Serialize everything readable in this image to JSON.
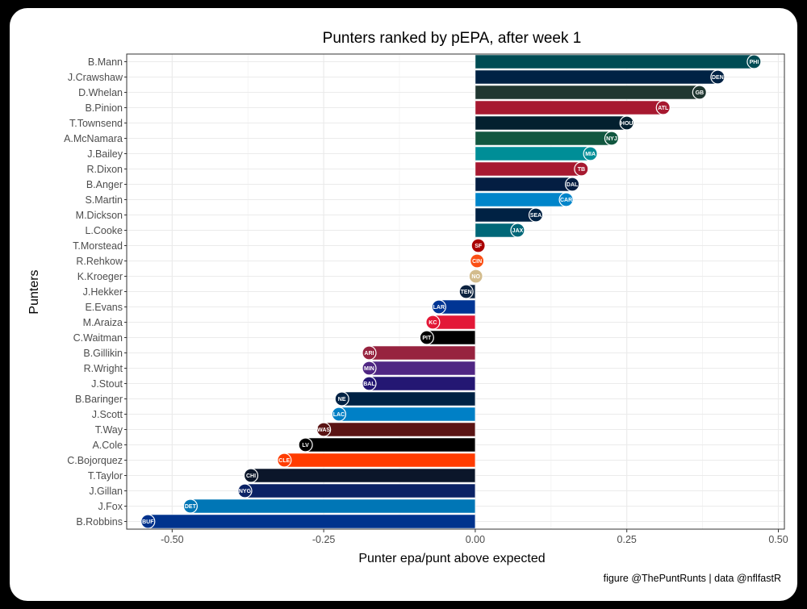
{
  "chart_data": {
    "type": "bar",
    "orientation": "horizontal",
    "title": "Punters ranked by pEPA, after week 1",
    "xlabel": "Punter epa/punt above expected",
    "ylabel": "Punters",
    "caption": "figure @ThePuntRunts | data @nflfastR",
    "xlim": [
      -0.575,
      0.51
    ],
    "xticks": [
      -0.5,
      -0.25,
      0.0,
      0.25,
      0.5
    ],
    "xtick_labels": [
      "-0.50",
      "-0.25",
      "0.00",
      "0.25",
      "0.50"
    ],
    "grid": true,
    "series": [
      {
        "name": "B.Mann",
        "team": "PHI",
        "value": 0.46,
        "color": "#004C54"
      },
      {
        "name": "J.Crawshaw",
        "team": "DEN",
        "value": 0.4,
        "color": "#002244"
      },
      {
        "name": "D.Whelan",
        "team": "GB",
        "value": 0.37,
        "color": "#203731"
      },
      {
        "name": "B.Pinion",
        "team": "ATL",
        "value": 0.31,
        "color": "#A71930"
      },
      {
        "name": "T.Townsend",
        "team": "HOU",
        "value": 0.25,
        "color": "#03202F"
      },
      {
        "name": "A.McNamara",
        "team": "NYJ",
        "value": 0.225,
        "color": "#125740"
      },
      {
        "name": "J.Bailey",
        "team": "MIA",
        "value": 0.19,
        "color": "#008E97"
      },
      {
        "name": "R.Dixon",
        "team": "TB",
        "value": 0.175,
        "color": "#A71930"
      },
      {
        "name": "B.Anger",
        "team": "DAL",
        "value": 0.16,
        "color": "#041E42"
      },
      {
        "name": "S.Martin",
        "team": "CAR",
        "value": 0.15,
        "color": "#0085CA"
      },
      {
        "name": "M.Dickson",
        "team": "SEA",
        "value": 0.1,
        "color": "#002244"
      },
      {
        "name": "L.Cooke",
        "team": "JAX",
        "value": 0.07,
        "color": "#006778"
      },
      {
        "name": "T.Morstead",
        "team": "SF",
        "value": 0.005,
        "color": "#AA0000"
      },
      {
        "name": "R.Rehkow",
        "team": "CIN",
        "value": 0.003,
        "color": "#FB4F14"
      },
      {
        "name": "K.Kroeger",
        "team": "NO",
        "value": 0.001,
        "color": "#D3BC8D"
      },
      {
        "name": "J.Hekker",
        "team": "TEN",
        "value": -0.015,
        "color": "#0C2340"
      },
      {
        "name": "E.Evans",
        "team": "LAR",
        "value": -0.06,
        "color": "#003594"
      },
      {
        "name": "M.Araiza",
        "team": "KC",
        "value": -0.07,
        "color": "#E31837"
      },
      {
        "name": "C.Waitman",
        "team": "PIT",
        "value": -0.08,
        "color": "#000000"
      },
      {
        "name": "B.Gillikin",
        "team": "ARI",
        "value": -0.175,
        "color": "#97233F"
      },
      {
        "name": "R.Wright",
        "team": "MIN",
        "value": -0.175,
        "color": "#4F2683"
      },
      {
        "name": "J.Stout",
        "team": "BAL",
        "value": -0.175,
        "color": "#241773"
      },
      {
        "name": "B.Baringer",
        "team": "NE",
        "value": -0.22,
        "color": "#002244"
      },
      {
        "name": "J.Scott",
        "team": "LAC",
        "value": -0.225,
        "color": "#0080C6"
      },
      {
        "name": "T.Way",
        "team": "WAS",
        "value": -0.25,
        "color": "#5A1414"
      },
      {
        "name": "A.Cole",
        "team": "LV",
        "value": -0.28,
        "color": "#000000"
      },
      {
        "name": "C.Bojorquez",
        "team": "CLE",
        "value": -0.315,
        "color": "#FF3C00"
      },
      {
        "name": "T.Taylor",
        "team": "CHI",
        "value": -0.37,
        "color": "#0B162A"
      },
      {
        "name": "J.Gillan",
        "team": "NYG",
        "value": -0.38,
        "color": "#0B2265"
      },
      {
        "name": "J.Fox",
        "team": "DET",
        "value": -0.47,
        "color": "#0076B6"
      },
      {
        "name": "B.Robbins",
        "team": "BUF",
        "value": -0.54,
        "color": "#00338D"
      }
    ]
  }
}
